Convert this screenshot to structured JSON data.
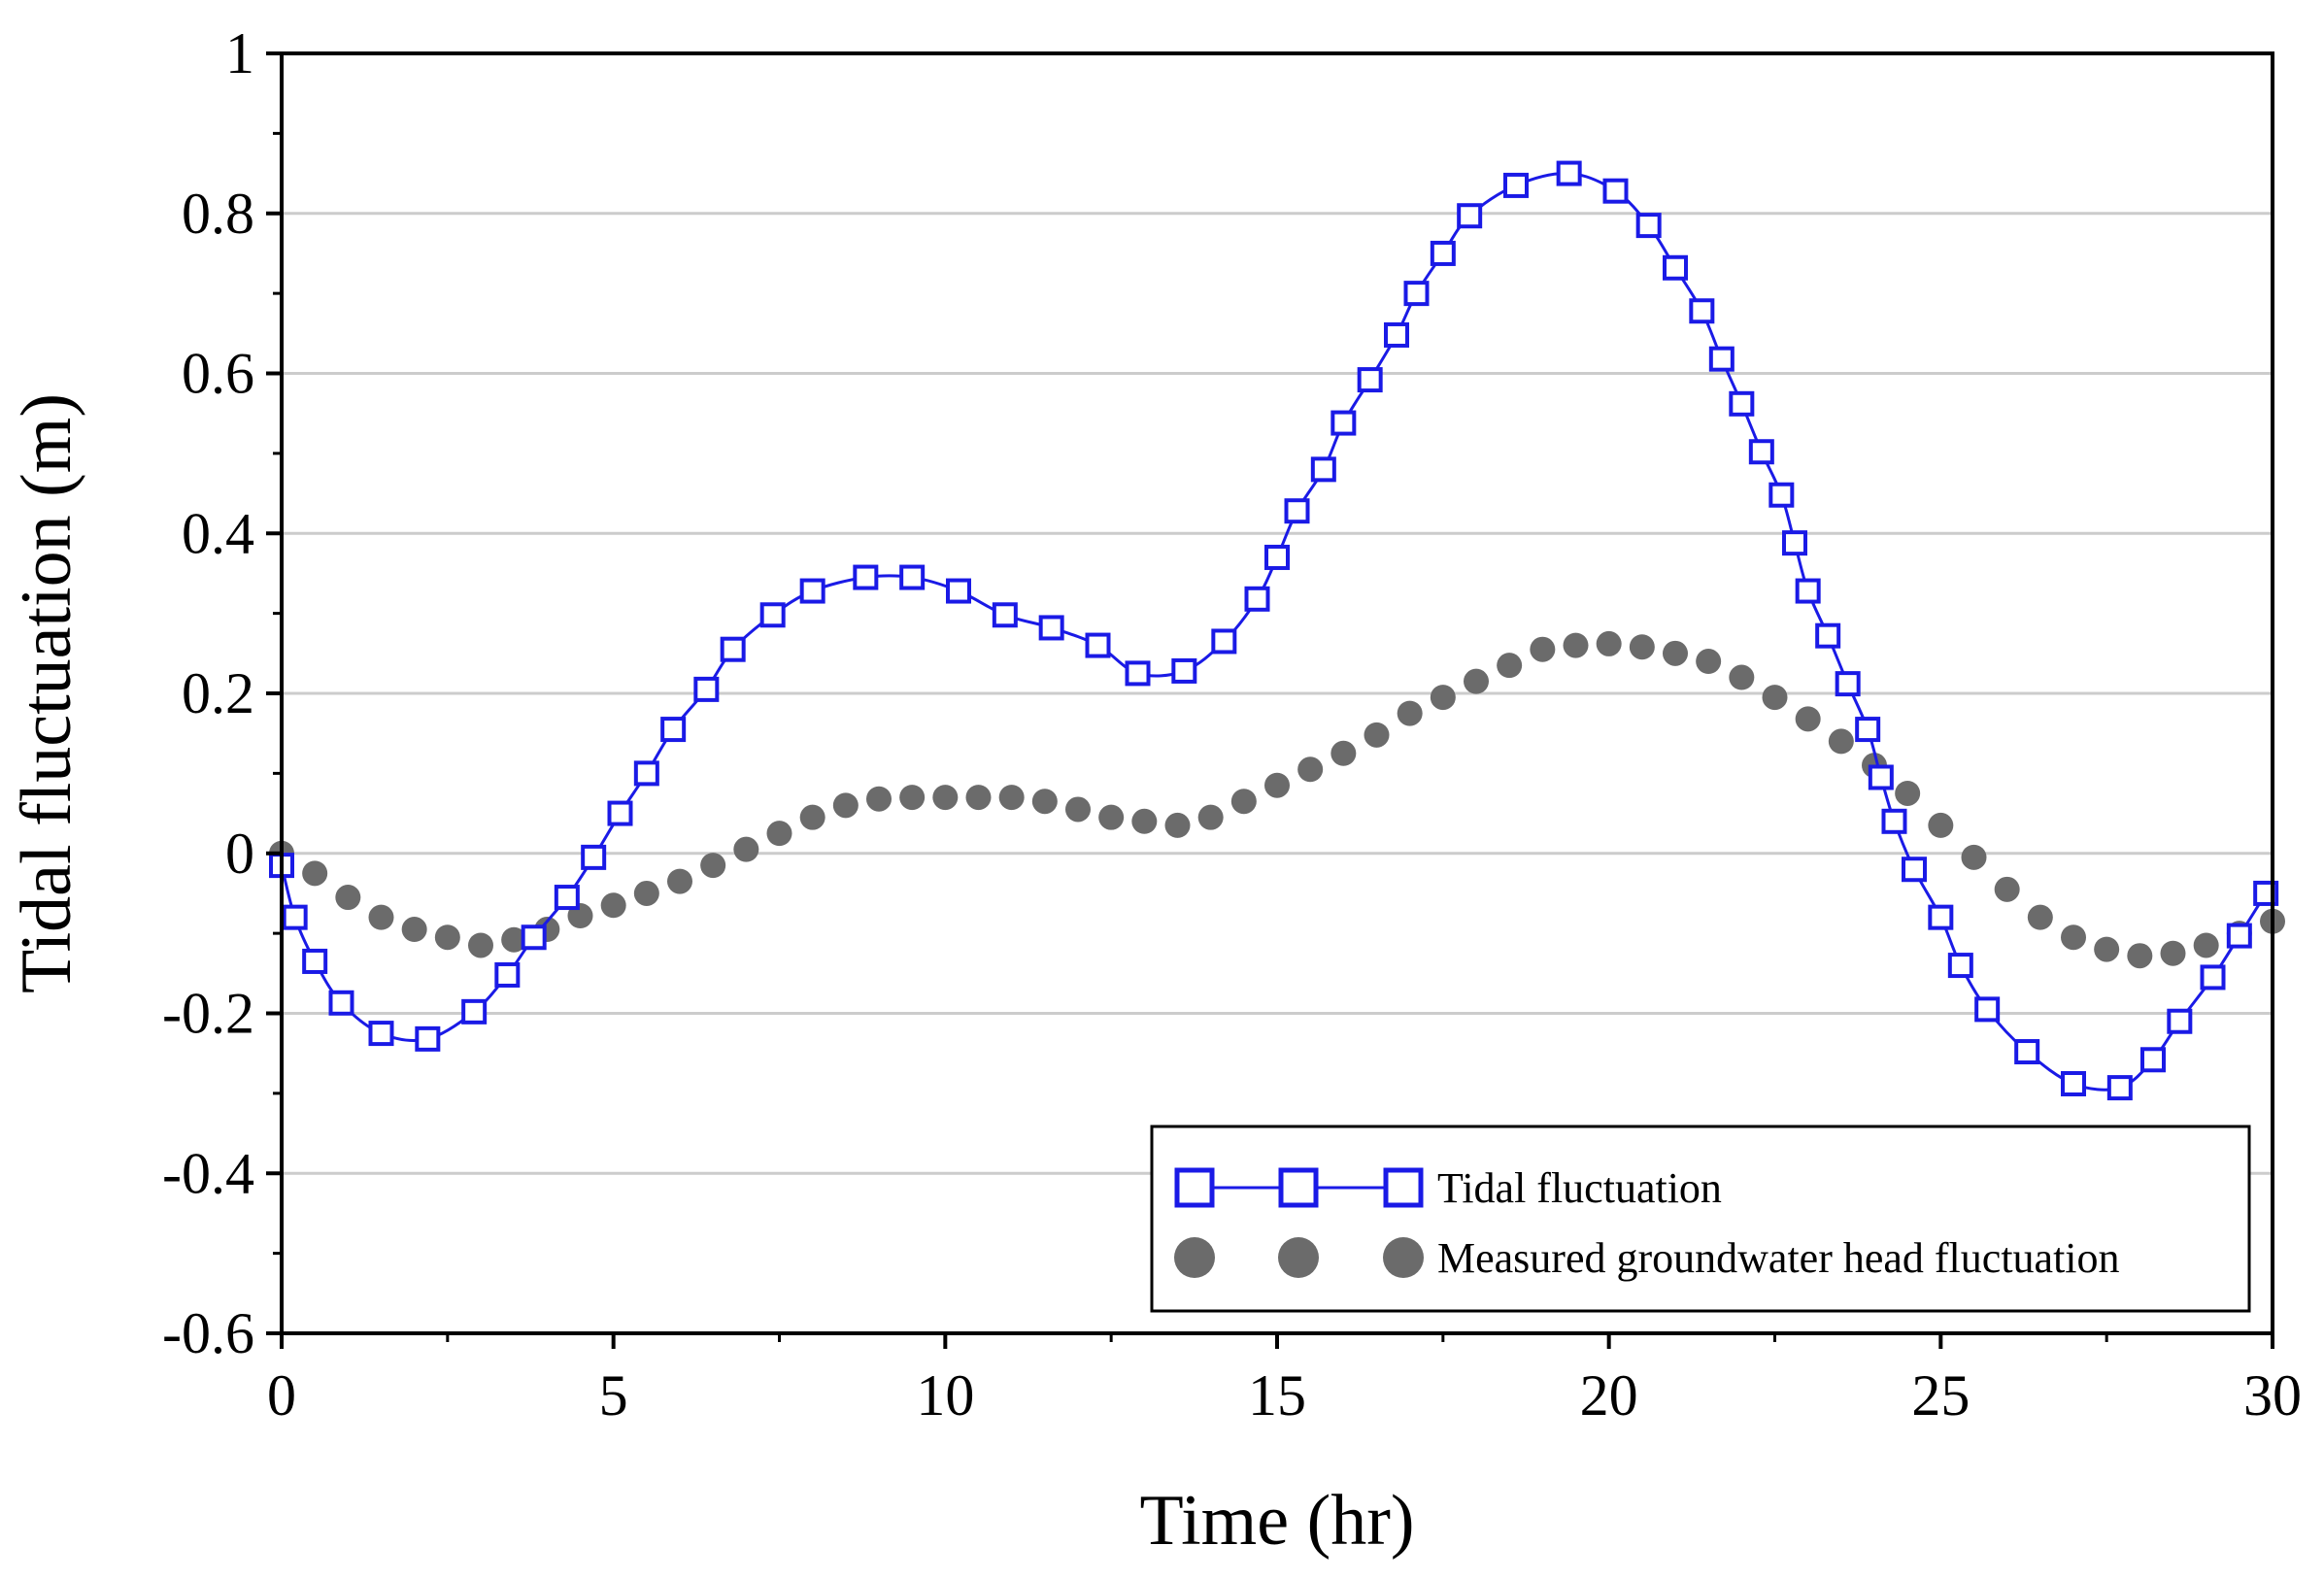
{
  "chart_data": {
    "type": "line",
    "title": "",
    "xlabel": "Time (hr)",
    "ylabel": "Tidal fluctuation (m)",
    "xlim": [
      0,
      30
    ],
    "ylim": [
      -0.6,
      1.0
    ],
    "xticks": [
      0,
      5,
      10,
      15,
      20,
      25,
      30
    ],
    "xtick_labels": [
      "0",
      "5",
      "10",
      "15",
      "20",
      "25",
      "30"
    ],
    "yticks": [
      -0.6,
      -0.4,
      -0.2,
      0,
      0.2,
      0.4,
      0.6,
      0.8,
      1.0
    ],
    "ytick_labels": [
      "-0.6",
      "-0.4",
      "-0.2",
      "0",
      "0.2",
      "0.4",
      "0.6",
      "0.8",
      "1"
    ],
    "grid": "horizontal",
    "legend_position": "bottom-right",
    "series": [
      {
        "name": "Tidal fluctuation",
        "style": "line-open-square",
        "color": "#1a1ae6",
        "x": [
          0.0,
          0.2,
          0.5,
          0.9,
          1.5,
          2.2,
          2.9,
          3.4,
          3.8,
          4.3,
          4.7,
          5.1,
          5.5,
          5.9,
          6.4,
          6.8,
          7.4,
          8.0,
          8.8,
          9.5,
          10.2,
          10.9,
          11.6,
          12.3,
          12.9,
          13.6,
          14.2,
          14.7,
          15.0,
          15.3,
          15.7,
          16.0,
          16.4,
          16.8,
          17.1,
          17.5,
          17.9,
          18.6,
          19.4,
          20.1,
          20.6,
          21.0,
          21.4,
          21.7,
          22.0,
          22.3,
          22.6,
          22.8,
          23.0,
          23.3,
          23.6,
          23.9,
          24.1,
          24.3,
          24.6,
          25.0,
          25.3,
          25.7,
          26.3,
          27.0,
          27.7,
          28.2,
          28.6,
          29.1,
          29.5,
          29.9
        ],
        "y": [
          -0.015,
          -0.08,
          -0.135,
          -0.187,
          -0.225,
          -0.232,
          -0.198,
          -0.152,
          -0.105,
          -0.055,
          -0.005,
          0.05,
          0.1,
          0.155,
          0.205,
          0.255,
          0.298,
          0.328,
          0.345,
          0.345,
          0.328,
          0.298,
          0.282,
          0.26,
          0.225,
          0.228,
          0.265,
          0.318,
          0.37,
          0.428,
          0.48,
          0.538,
          0.592,
          0.648,
          0.7,
          0.75,
          0.797,
          0.835,
          0.85,
          0.828,
          0.785,
          0.732,
          0.678,
          0.618,
          0.562,
          0.502,
          0.448,
          0.388,
          0.328,
          0.272,
          0.212,
          0.155,
          0.095,
          0.04,
          -0.02,
          -0.08,
          -0.14,
          -0.195,
          -0.248,
          -0.288,
          -0.293,
          -0.258,
          -0.21,
          -0.155,
          -0.103,
          -0.05
        ]
      },
      {
        "name": "Measured groundwater head fluctuation",
        "style": "filled-circle",
        "color": "#6b6b6b",
        "x": [
          0.0,
          0.5,
          1.0,
          1.5,
          2.0,
          2.5,
          3.0,
          3.5,
          4.0,
          4.5,
          5.0,
          5.5,
          6.0,
          6.5,
          7.0,
          7.5,
          8.0,
          8.5,
          9.0,
          9.5,
          10.0,
          10.5,
          11.0,
          11.5,
          12.0,
          12.5,
          13.0,
          13.5,
          14.0,
          14.5,
          15.0,
          15.5,
          16.0,
          16.5,
          17.0,
          17.5,
          18.0,
          18.5,
          19.0,
          19.5,
          20.0,
          20.5,
          21.0,
          21.5,
          22.0,
          22.5,
          23.0,
          23.5,
          24.0,
          24.5,
          25.0,
          25.5,
          26.0,
          26.5,
          27.0,
          27.5,
          28.0,
          28.5,
          29.0,
          29.5,
          30.0
        ],
        "y": [
          0.0,
          -0.025,
          -0.055,
          -0.08,
          -0.095,
          -0.105,
          -0.115,
          -0.108,
          -0.095,
          -0.078,
          -0.065,
          -0.05,
          -0.035,
          -0.015,
          0.005,
          0.025,
          0.045,
          0.06,
          0.068,
          0.07,
          0.07,
          0.07,
          0.07,
          0.065,
          0.055,
          0.045,
          0.04,
          0.035,
          0.045,
          0.065,
          0.085,
          0.105,
          0.125,
          0.148,
          0.175,
          0.195,
          0.215,
          0.235,
          0.255,
          0.26,
          0.262,
          0.258,
          0.25,
          0.24,
          0.22,
          0.195,
          0.168,
          0.14,
          0.11,
          0.075,
          0.035,
          -0.005,
          -0.045,
          -0.08,
          -0.105,
          -0.12,
          -0.128,
          -0.125,
          -0.115,
          -0.1,
          -0.085
        ]
      }
    ]
  },
  "legend": {
    "items": [
      "Tidal fluctuation",
      "Measured groundwater head fluctuation"
    ]
  }
}
